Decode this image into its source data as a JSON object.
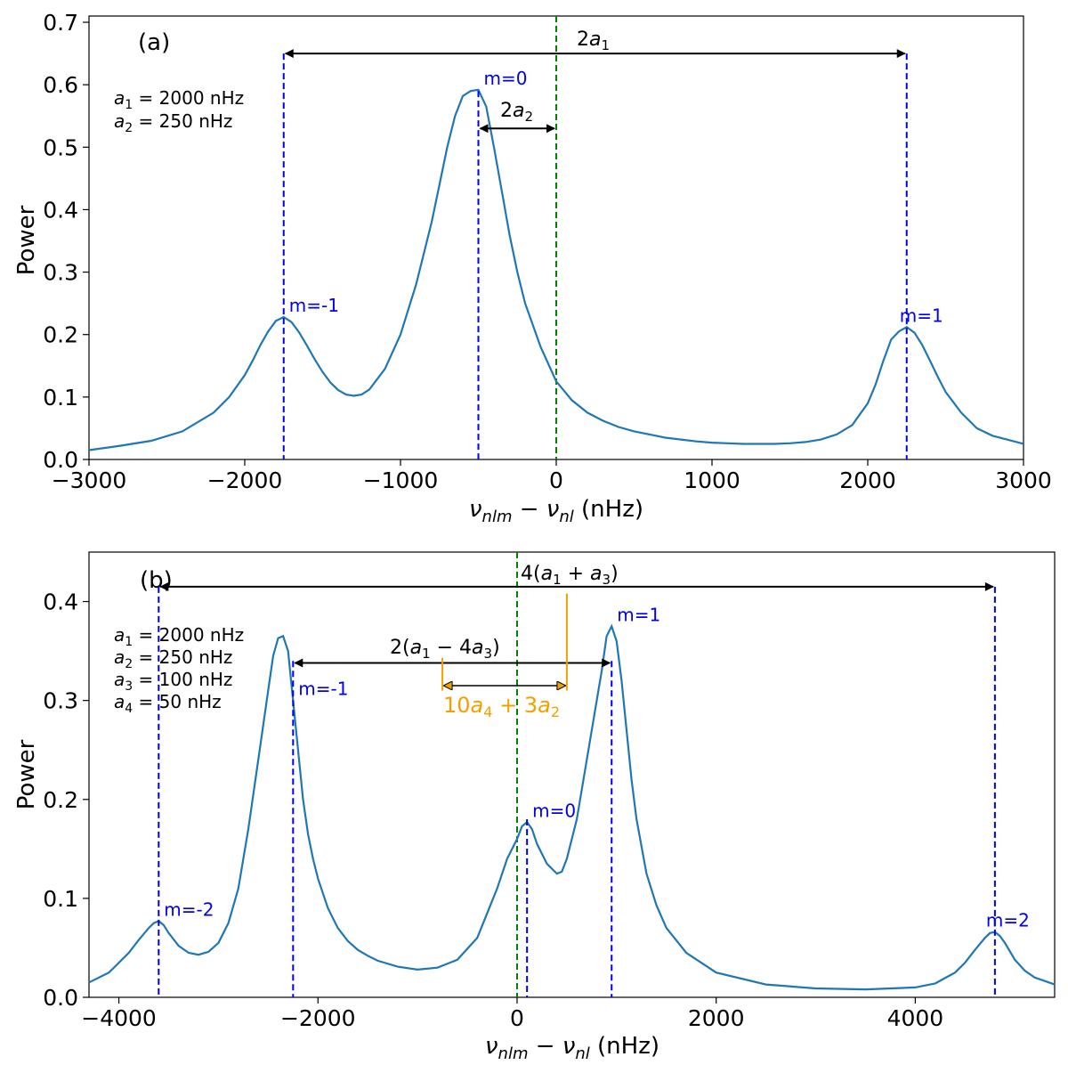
{
  "colors": {
    "curve": "#1f77b4",
    "mode_line": "#0000ee",
    "center_line": "#008000",
    "arrow": "#000000",
    "orange": "#f2a000"
  },
  "chart_data": [
    {
      "type": "line",
      "panel_label": "(a)",
      "xlabel": "ν_nlm − ν_nl (nHz)",
      "ylabel": "Power",
      "xlim": [
        -3000,
        3000
      ],
      "ylim": [
        0,
        0.71
      ],
      "xticks": [
        -3000,
        -2000,
        -1000,
        0,
        1000,
        2000,
        3000
      ],
      "xtick_labels": [
        "−3000",
        "−2000",
        "−1000",
        "0",
        "1000",
        "2000",
        "3000"
      ],
      "yticks": [
        0.0,
        0.1,
        0.2,
        0.3,
        0.4,
        0.5,
        0.6,
        0.7
      ],
      "ytick_labels": [
        "0.0",
        "0.1",
        "0.2",
        "0.3",
        "0.4",
        "0.5",
        "0.6",
        "0.7"
      ],
      "params": [
        "a₁ = 2000 nHz",
        "a₂ = 250 nHz"
      ],
      "modes": [
        {
          "label": "m=-1",
          "x": -1750
        },
        {
          "label": "m=0",
          "x": -500
        },
        {
          "label": "m=1",
          "x": 2250
        }
      ],
      "center_line_x": 0,
      "annotations": [
        {
          "text": "2a₁",
          "from": -1750,
          "to": 2250,
          "y": 0.65
        },
        {
          "text": "2a₂",
          "from": -500,
          "to": 0,
          "y": 0.53
        }
      ],
      "series": [
        {
          "x": [
            -3000,
            -2800,
            -2600,
            -2400,
            -2200,
            -2100,
            -2000,
            -1950,
            -1900,
            -1850,
            -1800,
            -1750,
            -1700,
            -1650,
            -1600,
            -1550,
            -1500,
            -1450,
            -1400,
            -1350,
            -1300,
            -1250,
            -1200,
            -1100,
            -1000,
            -900,
            -800,
            -750,
            -700,
            -650,
            -600,
            -550,
            -500,
            -450,
            -400,
            -350,
            -300,
            -250,
            -200,
            -100,
            0,
            100,
            200,
            300,
            400,
            500,
            600,
            700,
            800,
            900,
            1000,
            1100,
            1200,
            1300,
            1400,
            1500,
            1600,
            1700,
            1800,
            1900,
            2000,
            2050,
            2100,
            2150,
            2200,
            2250,
            2300,
            2350,
            2400,
            2450,
            2500,
            2600,
            2700,
            2800,
            3000
          ],
          "y": [
            0.015,
            0.022,
            0.03,
            0.045,
            0.075,
            0.1,
            0.135,
            0.158,
            0.183,
            0.205,
            0.222,
            0.228,
            0.22,
            0.203,
            0.182,
            0.16,
            0.14,
            0.123,
            0.111,
            0.104,
            0.102,
            0.104,
            0.112,
            0.145,
            0.2,
            0.28,
            0.38,
            0.44,
            0.5,
            0.55,
            0.582,
            0.59,
            0.592,
            0.565,
            0.5,
            0.43,
            0.36,
            0.3,
            0.25,
            0.18,
            0.125,
            0.095,
            0.075,
            0.062,
            0.052,
            0.045,
            0.04,
            0.035,
            0.032,
            0.029,
            0.027,
            0.026,
            0.025,
            0.025,
            0.025,
            0.026,
            0.028,
            0.032,
            0.04,
            0.055,
            0.09,
            0.12,
            0.158,
            0.192,
            0.205,
            0.212,
            0.203,
            0.183,
            0.158,
            0.132,
            0.108,
            0.075,
            0.05,
            0.038,
            0.025
          ]
        }
      ]
    },
    {
      "type": "line",
      "panel_label": "(b)",
      "xlabel": "ν_nlm − ν_nl (nHz)",
      "ylabel": "Power",
      "xlim": [
        -4300,
        5400
      ],
      "ylim": [
        0,
        0.45
      ],
      "xticks": [
        -4000,
        -2000,
        0,
        2000,
        4000
      ],
      "xtick_labels": [
        "−4000",
        "−2000",
        "0",
        "2000",
        "4000"
      ],
      "yticks": [
        0.0,
        0.1,
        0.2,
        0.3,
        0.4
      ],
      "ytick_labels": [
        "0.0",
        "0.1",
        "0.2",
        "0.3",
        "0.4"
      ],
      "params": [
        "a₁ = 2000 nHz",
        "a₂ = 250 nHz",
        "a₃ = 100 nHz",
        "a₄ = 50 nHz"
      ],
      "modes": [
        {
          "label": "m=-2",
          "x": -3600
        },
        {
          "label": "m=-1",
          "x": -2250
        },
        {
          "label": "m=0",
          "x": 100
        },
        {
          "label": "m=1",
          "x": 950
        },
        {
          "label": "m=2",
          "x": 4800
        }
      ],
      "center_line_x": 0,
      "annotations": [
        {
          "text": "4(a₁ + a₃)",
          "from": -3600,
          "to": 4800,
          "y": 0.415
        },
        {
          "text": "2(a₁ − 4a₃)",
          "from": -2250,
          "to": 950,
          "y": 0.338
        },
        {
          "text": "10a₄ + 3a₂",
          "from": -750,
          "to": 500,
          "y": 0.315
        }
      ],
      "series": [
        {
          "x": [
            -4300,
            -4100,
            -3900,
            -3800,
            -3700,
            -3650,
            -3600,
            -3550,
            -3500,
            -3400,
            -3300,
            -3200,
            -3100,
            -3000,
            -2900,
            -2800,
            -2700,
            -2600,
            -2500,
            -2450,
            -2400,
            -2350,
            -2300,
            -2250,
            -2200,
            -2150,
            -2100,
            -2050,
            -2000,
            -1900,
            -1800,
            -1700,
            -1600,
            -1500,
            -1400,
            -1200,
            -1000,
            -800,
            -600,
            -400,
            -200,
            -100,
            0,
            50,
            100,
            150,
            200,
            300,
            400,
            450,
            500,
            600,
            700,
            750,
            800,
            850,
            900,
            950,
            1000,
            1050,
            1100,
            1150,
            1200,
            1300,
            1400,
            1500,
            1700,
            2000,
            2500,
            3000,
            3500,
            4000,
            4200,
            4400,
            4500,
            4600,
            4700,
            4750,
            4800,
            4850,
            4900,
            5000,
            5100,
            5200,
            5400
          ],
          "y": [
            0.015,
            0.025,
            0.045,
            0.058,
            0.07,
            0.075,
            0.077,
            0.073,
            0.065,
            0.052,
            0.045,
            0.043,
            0.046,
            0.055,
            0.075,
            0.11,
            0.17,
            0.24,
            0.31,
            0.345,
            0.363,
            0.365,
            0.35,
            0.3,
            0.25,
            0.2,
            0.165,
            0.14,
            0.12,
            0.09,
            0.07,
            0.057,
            0.048,
            0.042,
            0.037,
            0.031,
            0.028,
            0.03,
            0.038,
            0.06,
            0.11,
            0.14,
            0.16,
            0.173,
            0.177,
            0.17,
            0.155,
            0.135,
            0.125,
            0.127,
            0.14,
            0.18,
            0.24,
            0.27,
            0.3,
            0.33,
            0.365,
            0.375,
            0.36,
            0.32,
            0.27,
            0.22,
            0.18,
            0.125,
            0.093,
            0.07,
            0.045,
            0.025,
            0.013,
            0.009,
            0.008,
            0.01,
            0.014,
            0.025,
            0.035,
            0.048,
            0.06,
            0.065,
            0.066,
            0.062,
            0.055,
            0.038,
            0.027,
            0.02,
            0.013
          ]
        }
      ]
    }
  ]
}
